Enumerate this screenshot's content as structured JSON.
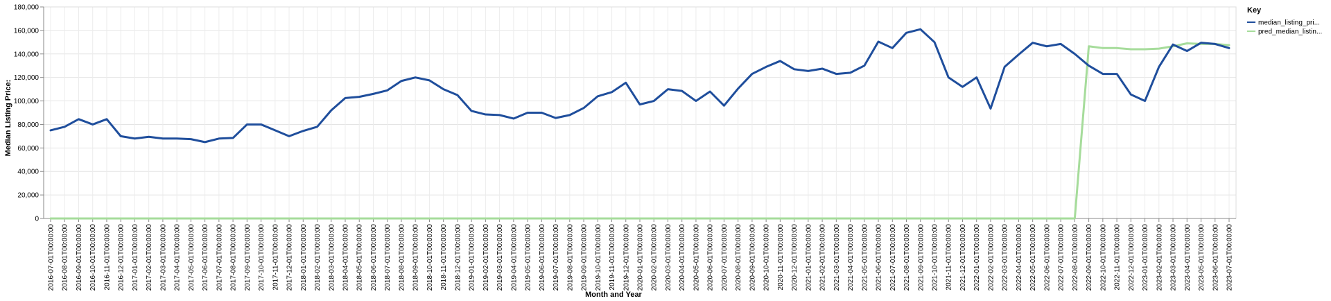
{
  "chart_data": {
    "type": "line",
    "xlabel": "Month and Year",
    "ylabel": "Median Listing Price:",
    "ylim": [
      0,
      180000
    ],
    "yticks": [
      0,
      20000,
      40000,
      60000,
      80000,
      100000,
      120000,
      140000,
      160000,
      180000
    ],
    "ytick_labels": [
      "0",
      "20,000",
      "40,000",
      "60,000",
      "80,000",
      "100,000",
      "120,000",
      "140,000",
      "160,000",
      "180,000"
    ],
    "grid": true,
    "legend": {
      "title": "Key",
      "placement": "right"
    },
    "x": [
      "2016-07-01T00:00:00",
      "2016-08-01T00:00:00",
      "2016-09-01T00:00:00",
      "2016-10-01T00:00:00",
      "2016-11-01T00:00:00",
      "2016-12-01T00:00:00",
      "2017-01-01T00:00:00",
      "2017-02-01T00:00:00",
      "2017-03-01T00:00:00",
      "2017-04-01T00:00:00",
      "2017-05-01T00:00:00",
      "2017-06-01T00:00:00",
      "2017-07-01T00:00:00",
      "2017-08-01T00:00:00",
      "2017-09-01T00:00:00",
      "2017-10-01T00:00:00",
      "2017-11-01T00:00:00",
      "2017-12-01T00:00:00",
      "2018-01-01T00:00:00",
      "2018-02-01T00:00:00",
      "2018-03-01T00:00:00",
      "2018-04-01T00:00:00",
      "2018-05-01T00:00:00",
      "2018-06-01T00:00:00",
      "2018-07-01T00:00:00",
      "2018-08-01T00:00:00",
      "2018-09-01T00:00:00",
      "2018-10-01T00:00:00",
      "2018-11-01T00:00:00",
      "2018-12-01T00:00:00",
      "2019-01-01T00:00:00",
      "2019-02-01T00:00:00",
      "2019-03-01T00:00:00",
      "2019-04-01T00:00:00",
      "2019-05-01T00:00:00",
      "2019-06-01T00:00:00",
      "2019-07-01T00:00:00",
      "2019-08-01T00:00:00",
      "2019-09-01T00:00:00",
      "2019-10-01T00:00:00",
      "2019-11-01T00:00:00",
      "2019-12-01T00:00:00",
      "2020-01-01T00:00:00",
      "2020-02-01T00:00:00",
      "2020-03-01T00:00:00",
      "2020-04-01T00:00:00",
      "2020-05-01T00:00:00",
      "2020-06-01T00:00:00",
      "2020-07-01T00:00:00",
      "2020-08-01T00:00:00",
      "2020-09-01T00:00:00",
      "2020-10-01T00:00:00",
      "2020-11-01T00:00:00",
      "2020-12-01T00:00:00",
      "2021-01-01T00:00:00",
      "2021-02-01T00:00:00",
      "2021-03-01T00:00:00",
      "2021-04-01T00:00:00",
      "2021-05-01T00:00:00",
      "2021-06-01T00:00:00",
      "2021-07-01T00:00:00",
      "2021-08-01T00:00:00",
      "2021-09-01T00:00:00",
      "2021-10-01T00:00:00",
      "2021-11-01T00:00:00",
      "2021-12-01T00:00:00",
      "2022-01-01T00:00:00",
      "2022-02-01T00:00:00",
      "2022-03-01T00:00:00",
      "2022-04-01T00:00:00",
      "2022-05-01T00:00:00",
      "2022-06-01T00:00:00",
      "2022-07-01T00:00:00",
      "2022-08-01T00:00:00",
      "2022-09-01T00:00:00",
      "2022-10-01T00:00:00",
      "2022-11-01T00:00:00",
      "2022-12-01T00:00:00",
      "2023-01-01T00:00:00",
      "2023-02-01T00:00:00",
      "2023-03-01T00:00:00",
      "2023-04-01T00:00:00",
      "2023-05-01T00:00:00",
      "2023-06-01T00:00:00",
      "2023-07-01T00:00:00"
    ],
    "series": [
      {
        "name": "median_listing_pri...",
        "color": "#1f4e9c",
        "values": [
          75000,
          78000,
          84500,
          80000,
          84500,
          70000,
          68000,
          69500,
          68000,
          68000,
          67500,
          65000,
          68000,
          68500,
          80000,
          80000,
          75000,
          70000,
          74500,
          78000,
          92000,
          102500,
          103500,
          106000,
          109000,
          117000,
          120000,
          117500,
          110000,
          105000,
          91500,
          88500,
          88000,
          85000,
          90000,
          90000,
          85500,
          88000,
          94000,
          104000,
          107500,
          115500,
          97000,
          100000,
          110000,
          108500,
          100000,
          108000,
          96000,
          110500,
          123000,
          129000,
          134000,
          127000,
          125500,
          127500,
          123000,
          124000,
          130000,
          150500,
          145000,
          158000,
          161000,
          150000,
          120000,
          112000,
          120000,
          93500,
          129000,
          139500,
          149500,
          146500,
          148500,
          140000,
          130000,
          123000,
          123000,
          105500,
          100000,
          129000,
          148000,
          142500,
          149500,
          148500,
          145000
        ]
      },
      {
        "name": "pred_median_listin...",
        "color": "#a6dc9b",
        "values": [
          0,
          0,
          0,
          0,
          0,
          0,
          0,
          0,
          0,
          0,
          0,
          0,
          0,
          0,
          0,
          0,
          0,
          0,
          0,
          0,
          0,
          0,
          0,
          0,
          0,
          0,
          0,
          0,
          0,
          0,
          0,
          0,
          0,
          0,
          0,
          0,
          0,
          0,
          0,
          0,
          0,
          0,
          0,
          0,
          0,
          0,
          0,
          0,
          0,
          0,
          0,
          0,
          0,
          0,
          0,
          0,
          0,
          0,
          0,
          0,
          0,
          0,
          0,
          0,
          0,
          0,
          0,
          0,
          0,
          0,
          0,
          0,
          0,
          0,
          146500,
          145000,
          145000,
          144000,
          144000,
          144500,
          146500,
          149000,
          148500,
          148500,
          147500
        ]
      }
    ]
  }
}
